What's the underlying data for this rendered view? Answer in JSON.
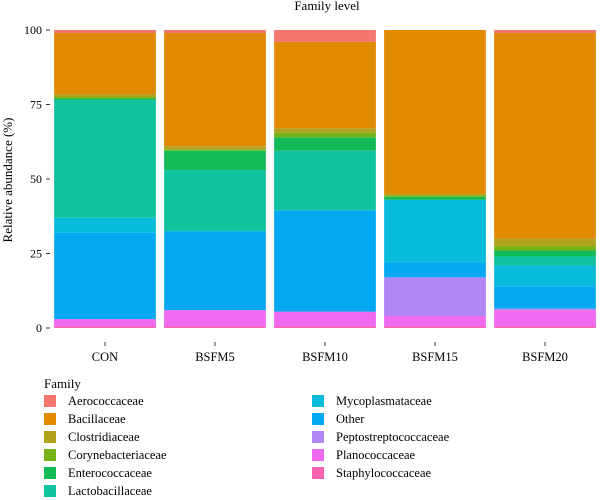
{
  "chart_data": {
    "type": "bar",
    "stacked": true,
    "title": "Family level",
    "ylabel": "Relative abundance (%)",
    "xlabel": "",
    "ylim": [
      0,
      100
    ],
    "yticks": [
      0,
      25,
      50,
      75,
      100
    ],
    "categories": [
      "CON",
      "BSFM5",
      "BSFM10",
      "BSFM15",
      "BSFM20"
    ],
    "legend_title": "Family",
    "legend_position": "bottom",
    "grid": false,
    "series": [
      {
        "name": "Staphylococcaceae",
        "color": "#f763b1",
        "values": [
          0.5,
          0.5,
          0.5,
          0.5,
          0.5
        ]
      },
      {
        "name": "Planococcaceae",
        "color": "#ee6bf0",
        "values": [
          2.5,
          5.5,
          5.0,
          3.5,
          5.5
        ]
      },
      {
        "name": "Peptostreptococcaceae",
        "color": "#b285f5",
        "values": [
          0.0,
          0.0,
          0.0,
          13.0,
          0.5
        ]
      },
      {
        "name": "Other",
        "color": "#04a9f2",
        "values": [
          29.0,
          26.5,
          34.0,
          5.0,
          7.5
        ]
      },
      {
        "name": "Mycoplasmataceae",
        "color": "#09bcdb",
        "values": [
          5.0,
          0.0,
          0.0,
          21.0,
          7.0
        ]
      },
      {
        "name": "Lactobacillaceae",
        "color": "#12c3a1",
        "values": [
          39.5,
          20.5,
          20.0,
          0.0,
          3.0
        ]
      },
      {
        "name": "Enterococcaceae",
        "color": "#15ba58",
        "values": [
          0.5,
          6.5,
          4.5,
          1.0,
          2.0
        ]
      },
      {
        "name": "Corynebacteriaceae",
        "color": "#76b318",
        "values": [
          0.5,
          0.5,
          1.5,
          0.5,
          1.5
        ]
      },
      {
        "name": "Clostridiaceae",
        "color": "#b0a21c",
        "values": [
          1.0,
          1.0,
          1.5,
          0.5,
          2.5
        ]
      },
      {
        "name": "Bacillaceae",
        "color": "#df8a00",
        "values": [
          20.5,
          38.0,
          29.0,
          55.0,
          69.0
        ]
      },
      {
        "name": "Aerococcaceae",
        "color": "#f3776f",
        "values": [
          1.0,
          1.0,
          4.0,
          0.0,
          1.0
        ]
      }
    ],
    "legend_order": [
      "Aerococcaceae",
      "Bacillaceae",
      "Clostridiaceae",
      "Corynebacteriaceae",
      "Enterococcaceae",
      "Lactobacillaceae",
      "Mycoplasmataceae",
      "Other",
      "Peptostreptococcaceae",
      "Planococcaceae",
      "Staphylococcaceae"
    ]
  }
}
